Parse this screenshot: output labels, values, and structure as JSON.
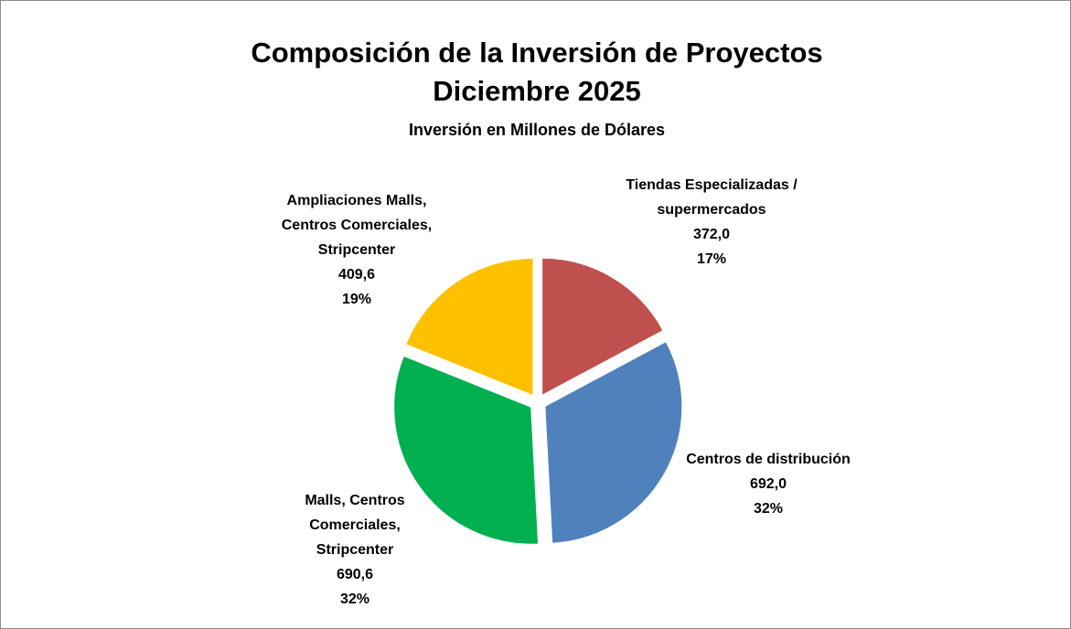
{
  "chart_data": {
    "type": "pie",
    "title": [
      "Composición de la Inversión de Proyectos",
      "Diciembre 2025"
    ],
    "subtitle": "Inversión en Millones de Dólares",
    "categories": [
      [
        "Tiendas Especializadas /",
        "supermercados"
      ],
      [
        "Centros de distribución"
      ],
      [
        "Malls, Centros",
        "Comerciales,",
        "Stripcenter"
      ],
      [
        "Ampliaciones Malls,",
        "Centros Comerciales,",
        "Stripcenter"
      ]
    ],
    "values": [
      372.0,
      692.0,
      690.6,
      409.6
    ],
    "value_labels": [
      "372,0",
      "692,0",
      "690,6",
      "409,6"
    ],
    "percentages": [
      17,
      32,
      32,
      19
    ],
    "percentage_labels": [
      "17%",
      "32%",
      "32%",
      "19%"
    ],
    "colors": [
      "#c0504d",
      "#4f81bd",
      "#00b050",
      "#ffc000"
    ]
  }
}
